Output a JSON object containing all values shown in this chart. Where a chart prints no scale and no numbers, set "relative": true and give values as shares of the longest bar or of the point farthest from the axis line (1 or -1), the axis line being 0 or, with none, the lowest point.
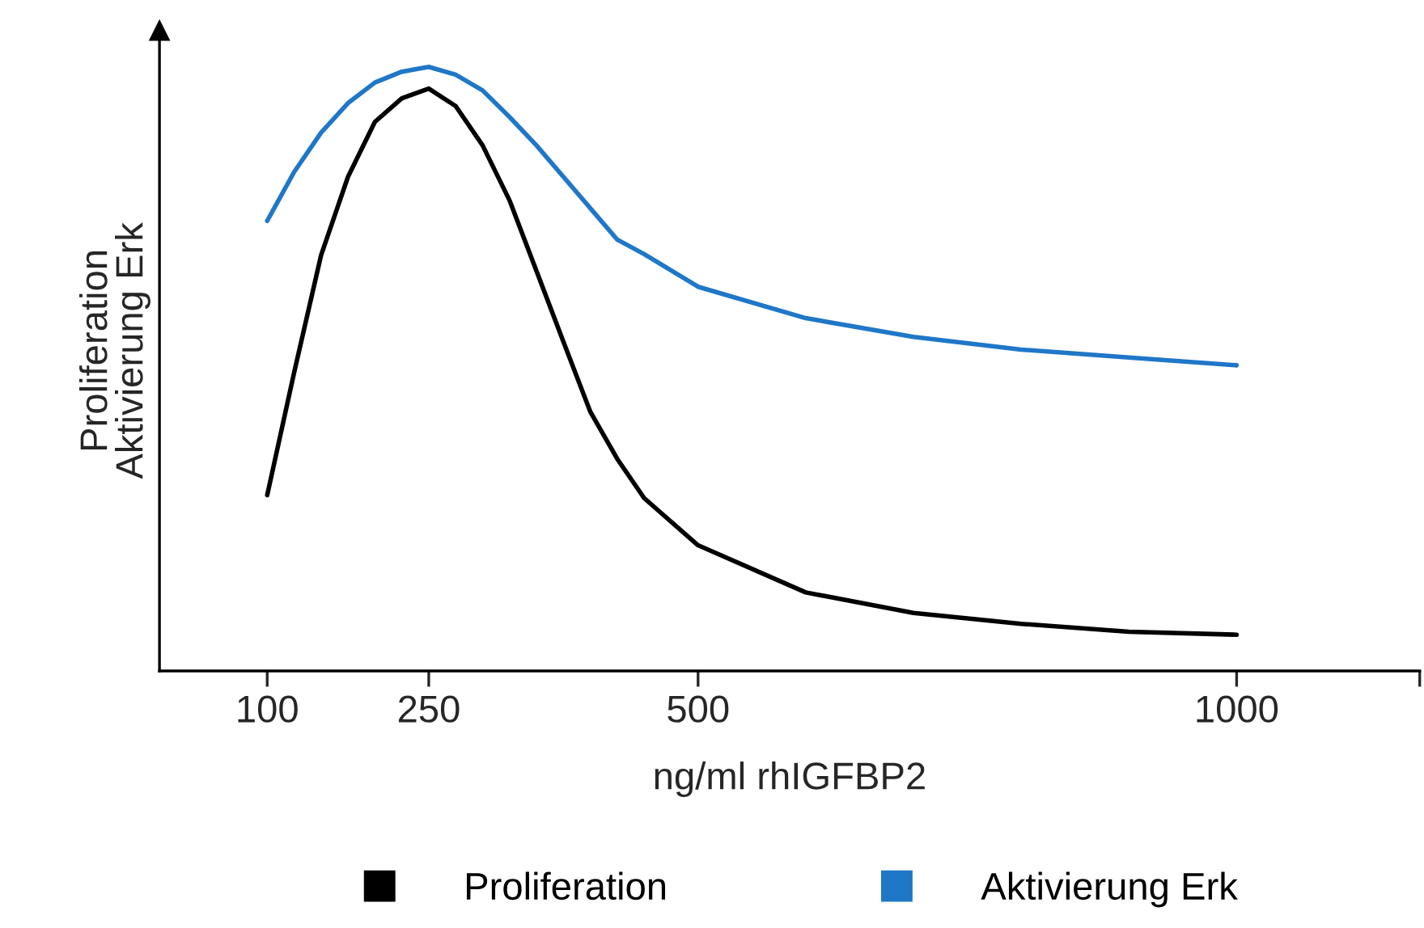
{
  "chart_data": {
    "type": "line",
    "relative": true,
    "xlabel": "ng/ml rhIGFBP2",
    "ylabel": "Proliferation\nAktivierung Erk",
    "x": [
      100,
      125,
      150,
      175,
      200,
      225,
      250,
      275,
      300,
      325,
      350,
      375,
      400,
      425,
      450,
      500,
      600,
      700,
      800,
      900,
      1000
    ],
    "xlim": [
      0,
      1170
    ],
    "xticks": [
      100,
      250,
      500,
      1000,
      {
        "value": 1170,
        "label": null
      }
    ],
    "tick_labels": "x",
    "grid": false,
    "legend": "bottom",
    "marker": "none",
    "line_style": "solid",
    "series": [
      {
        "name": "Proliferation",
        "color": "#000000",
        "values": [
          0.291,
          0.494,
          0.688,
          0.818,
          0.909,
          0.948,
          0.964,
          0.935,
          0.87,
          0.779,
          0.662,
          0.545,
          0.429,
          0.351,
          0.286,
          0.208,
          0.13,
          0.096,
          0.078,
          0.065,
          0.06
        ]
      },
      {
        "name": "Aktivierung Erk",
        "color": "#1f77c8",
        "values": [
          0.745,
          0.826,
          0.891,
          0.94,
          0.974,
          0.992,
          1.0,
          0.987,
          0.961,
          0.917,
          0.87,
          0.818,
          0.766,
          0.714,
          0.69,
          0.636,
          0.584,
          0.553,
          0.532,
          0.519,
          0.506
        ]
      }
    ]
  }
}
